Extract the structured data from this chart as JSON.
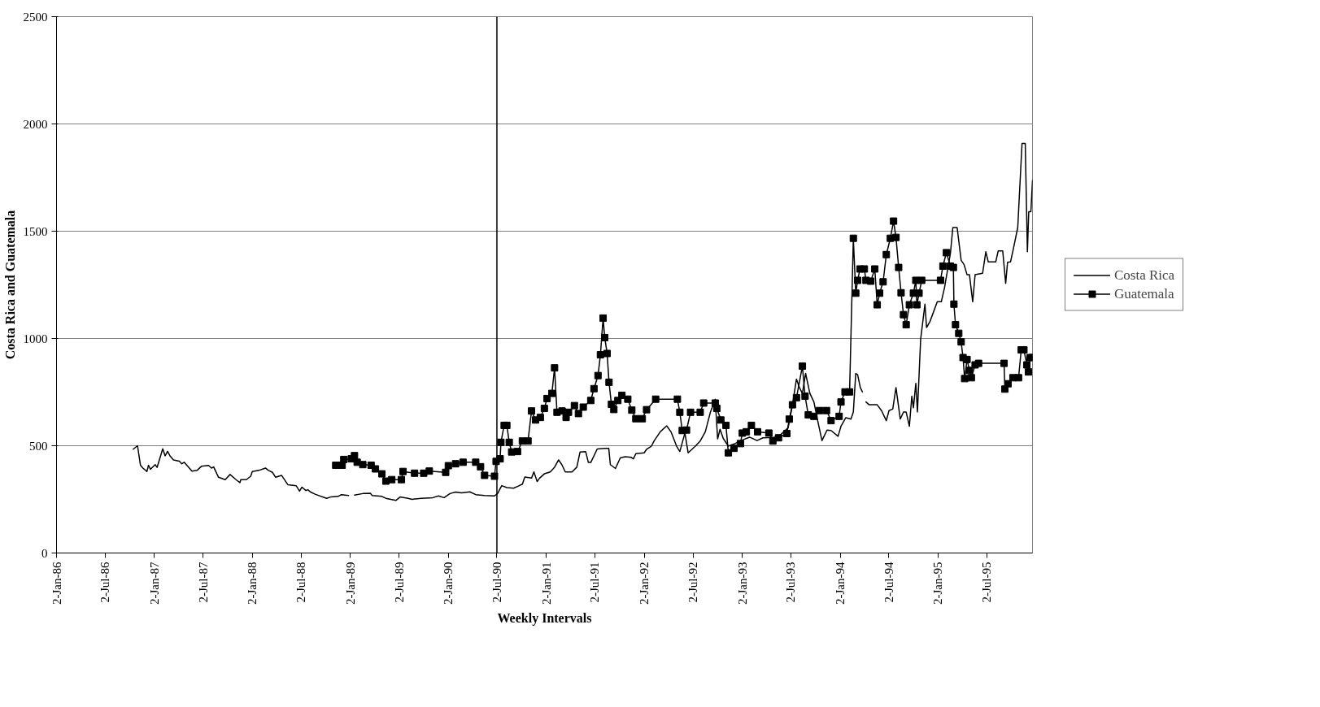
{
  "chart_data": {
    "type": "line",
    "xlabel": "Weekly Intervals",
    "ylabel": "Costa Rica and Guatemala",
    "xlim": [
      "1986-01-02",
      "1995-12-20"
    ],
    "ylim": [
      0,
      2500
    ],
    "yticks": [
      0,
      500,
      1000,
      1500,
      2000,
      2500
    ],
    "xticks": [
      {
        "value": "1986-01-02",
        "label": "2-Jan-86"
      },
      {
        "value": "1986-07-02",
        "label": "2-Jul-86"
      },
      {
        "value": "1987-01-02",
        "label": "2-Jan-87"
      },
      {
        "value": "1987-07-02",
        "label": "2-Jul-87"
      },
      {
        "value": "1988-01-02",
        "label": "2-Jan-88"
      },
      {
        "value": "1988-07-02",
        "label": "2-Jul-88"
      },
      {
        "value": "1989-01-02",
        "label": "2-Jan-89"
      },
      {
        "value": "1989-07-02",
        "label": "2-Jul-89"
      },
      {
        "value": "1990-01-02",
        "label": "2-Jan-90"
      },
      {
        "value": "1990-07-02",
        "label": "2-Jul-90"
      },
      {
        "value": "1991-01-02",
        "label": "2-Jan-91"
      },
      {
        "value": "1991-07-02",
        "label": "2-Jul-91"
      },
      {
        "value": "1992-01-02",
        "label": "2-Jan-92"
      },
      {
        "value": "1992-07-02",
        "label": "2-Jul-92"
      },
      {
        "value": "1993-01-02",
        "label": "2-Jan-93"
      },
      {
        "value": "1993-07-02",
        "label": "2-Jul-93"
      },
      {
        "value": "1994-01-02",
        "label": "2-Jan-94"
      },
      {
        "value": "1994-07-02",
        "label": "2-Jul-94"
      },
      {
        "value": "1995-01-02",
        "label": "2-Jan-95"
      },
      {
        "value": "1995-07-02",
        "label": "2-Jul-95"
      }
    ],
    "grid": "y",
    "legend": "right",
    "ref_lines": [
      {
        "axis": "x",
        "value": "1990-07-02",
        "color": "#000000"
      }
    ],
    "series": [
      {
        "name": "Costa Rica",
        "color": "#000000",
        "marker": "none",
        "x": [
          "1986-10-15",
          "1986-10-31",
          "1986-11-11",
          "1986-11-20",
          "1986-12-05",
          "1986-12-11",
          "1986-12-18",
          "1987-01-05",
          "1987-01-12",
          "1987-02-02",
          "1987-02-11",
          "1987-02-20",
          "1987-03-01",
          "1987-03-14",
          "1987-04-05",
          "1987-04-14",
          "1987-04-23",
          "1987-05-22",
          "1987-06-10",
          "1987-06-26",
          "1987-07-23",
          "1987-08-03",
          "1987-08-11",
          "1987-08-29",
          "1987-09-23",
          "1987-10-11",
          "1987-11-05",
          "1987-11-17",
          "1987-11-20",
          "1987-12-11",
          "1987-12-27",
          "1988-01-02",
          "1988-01-26",
          "1988-02-20",
          "1988-03-01",
          "1988-03-17",
          "1988-03-29",
          "1988-04-20",
          "1988-05-14",
          "1988-06-14",
          "1988-06-26",
          "1988-07-05",
          "1988-07-20",
          "1988-07-27",
          "1988-08-05",
          "1988-08-23",
          "1988-10-05",
          "1988-10-20",
          "1988-11-17",
          "1988-11-29",
          "1988-12-26",
          "1989-01-02",
          "1989-01-17",
          "1989-02-17",
          "1989-03-17",
          "1989-03-24",
          "1989-04-29",
          "1989-05-14",
          "1989-06-20",
          "1989-07-06",
          "1989-08-05",
          "1989-08-20",
          "1989-09-23",
          "1989-11-05",
          "1989-11-26",
          "1989-12-17",
          "1990-01-08",
          "1990-01-29",
          "1990-02-20",
          "1990-03-23",
          "1990-04-14",
          "1990-05-17",
          "1990-06-23",
          "1990-07-05",
          "1990-07-11",
          "1990-07-20",
          "1990-08-08",
          "1990-09-02",
          "1990-09-20",
          "1990-10-05",
          "1990-10-14",
          "1990-11-08",
          "1990-11-17",
          "1990-11-29",
          "1990-12-08",
          "1990-12-26",
          "1991-01-17",
          "1991-02-02",
          "1991-02-17",
          "1991-03-01",
          "1991-03-14",
          "1991-04-08",
          "1991-04-26",
          "1991-05-08",
          "1991-05-29",
          "1991-06-08",
          "1991-06-17",
          "1991-07-11",
          "1991-08-08",
          "1991-08-23",
          "1991-08-29",
          "1991-09-17",
          "1991-10-05",
          "1991-10-23",
          "1991-11-14",
          "1991-11-23",
          "1991-12-02",
          "1992-01-02",
          "1992-01-11",
          "1992-01-29",
          "1992-02-08",
          "1992-03-02",
          "1992-03-26",
          "1992-04-11",
          "1992-05-02",
          "1992-05-14",
          "1992-06-02",
          "1992-06-14",
          "1992-07-11",
          "1992-07-29",
          "1992-08-17",
          "1992-09-05",
          "1992-09-23",
          "1992-10-02",
          "1992-10-11",
          "1992-10-23",
          "1992-11-11",
          "1992-12-05",
          "1993-01-05",
          "1993-01-29",
          "1993-02-26",
          "1993-03-20",
          "1993-04-14",
          "1993-05-02",
          "1993-05-20",
          "1993-06-22",
          "1993-07-08",
          "1993-07-23",
          "1993-08-03",
          "1993-08-14",
          "1993-08-26",
          "1993-09-11",
          "1993-09-26",
          "1993-10-11",
          "1993-10-26",
          "1993-11-14",
          "1993-11-29",
          "1993-12-25",
          "1994-01-05",
          "1994-01-23",
          "1994-02-11",
          "1994-02-20",
          "1994-03-01",
          "1994-03-08",
          "1994-03-18",
          "1994-03-26",
          "1994-04-01",
          "1994-04-08",
          "1994-04-20",
          "1994-05-20",
          "1994-06-05",
          "1994-06-23",
          "1994-07-03",
          "1994-07-17",
          "1994-07-29",
          "1994-08-14",
          "1994-08-26",
          "1994-09-05",
          "1994-09-17",
          "1994-09-26",
          "1994-10-02",
          "1994-10-11",
          "1994-10-17",
          "1994-10-29",
          "1994-11-14",
          "1994-11-20",
          "1994-12-02",
          "1994-12-14",
          "1994-12-30",
          "1995-01-14",
          "1995-01-26",
          "1995-02-17",
          "1995-02-26",
          "1995-03-14",
          "1995-03-29",
          "1995-04-09",
          "1995-04-20",
          "1995-04-29",
          "1995-05-11",
          "1995-05-20",
          "1995-06-17",
          "1995-06-29",
          "1995-07-08",
          "1995-08-05",
          "1995-08-14",
          "1995-08-31",
          "1995-09-11",
          "1995-09-18",
          "1995-09-29",
          "1995-10-08",
          "1995-10-26",
          "1995-11-11",
          "1995-11-23",
          "1995-12-01",
          "1995-12-06",
          "1995-12-14",
          "1995-12-20"
        ],
        "values": [
          484,
          500,
          409,
          396,
          380,
          409,
          390,
          412,
          399,
          486,
          453,
          474,
          453,
          434,
          428,
          416,
          423,
          382,
          385,
          404,
          408,
          396,
          401,
          353,
          342,
          366,
          339,
          328,
          342,
          342,
          358,
          380,
          385,
          396,
          386,
          376,
          353,
          362,
          318,
          313,
          288,
          307,
          291,
          295,
          285,
          274,
          255,
          261,
          264,
          272,
          268,
          null,
          270,
          277,
          278,
          268,
          264,
          255,
          245,
          261,
          255,
          250,
          255,
          258,
          266,
          258,
          277,
          284,
          280,
          285,
          272,
          268,
          266,
          278,
          293,
          314,
          305,
          302,
          312,
          321,
          354,
          349,
          378,
          333,
          349,
          369,
          378,
          400,
          434,
          412,
          378,
          378,
          400,
          471,
          473,
          422,
          422,
          485,
          488,
          488,
          412,
          394,
          443,
          449,
          446,
          439,
          463,
          467,
          483,
          498,
          522,
          565,
          593,
          565,
          498,
          473,
          559,
          467,
          498,
          522,
          565,
          656,
          717,
          532,
          577,
          534,
          498,
          510,
          528,
          540,
          524,
          537,
          538,
          540,
          546,
          584,
          691,
          811,
          771,
          744,
          837,
          744,
          704,
          611,
          524,
          573,
          571,
          544,
          591,
          631,
          624,
          657,
          837,
          831,
          771,
          751,
          null,
          704,
          691,
          691,
          664,
          617,
          664,
          671,
          771,
          624,
          657,
          657,
          591,
          731,
          677,
          791,
          657,
          997,
          1160,
          1051,
          1077,
          1117,
          1171,
          1171,
          1237,
          1397,
          1517,
          1517,
          1364,
          1344,
          1297,
          1297,
          1171,
          1297,
          1304,
          1404,
          1357,
          1357,
          1408,
          1408,
          1257,
          1355,
          1357,
          1408,
          1517,
          1909,
          1909,
          1404,
          1591,
          1591,
          1737
        ]
      },
      {
        "name": "Guatemala",
        "color": "#000000",
        "marker": "square",
        "x": [
          "1988-11-08",
          "1988-12-02",
          "1988-12-08",
          "1989-01-05",
          "1989-01-17",
          "1989-01-27",
          "1989-02-17",
          "1989-03-20",
          "1989-04-05",
          "1989-04-29",
          "1989-05-14",
          "1989-06-05",
          "1989-07-11",
          "1989-07-17",
          "1989-08-29",
          "1989-10-02",
          "1989-10-23",
          "1989-12-23",
          "1990-01-02",
          "1990-01-29",
          "1990-02-26",
          "1990-04-14",
          "1990-05-02",
          "1990-05-17",
          "1990-06-23",
          "1990-06-29",
          "1990-07-14",
          "1990-07-17",
          "1990-07-29",
          "1990-08-08",
          "1990-08-17",
          "1990-08-26",
          "1990-09-17",
          "1990-10-05",
          "1990-10-26",
          "1990-11-08",
          "1990-11-23",
          "1990-12-11",
          "1990-12-26",
          "1991-01-05",
          "1991-01-23",
          "1991-02-02",
          "1991-02-11",
          "1991-03-02",
          "1991-03-17",
          "1991-03-26",
          "1991-04-17",
          "1991-05-02",
          "1991-05-20",
          "1991-06-17",
          "1991-06-29",
          "1991-07-14",
          "1991-07-23",
          "1991-08-02",
          "1991-08-08",
          "1991-08-17",
          "1991-08-24",
          "1991-09-02",
          "1991-09-11",
          "1991-09-26",
          "1991-10-11",
          "1991-11-02",
          "1991-11-17",
          "1991-12-02",
          "1991-12-26",
          "1992-01-11",
          "1992-02-14",
          "1992-05-05",
          "1992-05-14",
          "1992-05-23",
          "1992-06-08",
          "1992-06-23",
          "1992-07-29",
          "1992-08-11",
          "1992-09-23",
          "1992-09-29",
          "1992-10-14",
          "1992-11-02",
          "1992-11-11",
          "1992-12-02",
          "1992-12-26",
          "1993-01-02",
          "1993-01-17",
          "1993-02-05",
          "1993-02-28",
          "1993-04-11",
          "1993-04-26",
          "1993-05-17",
          "1993-06-17",
          "1993-06-26",
          "1993-07-08",
          "1993-07-23",
          "1993-08-14",
          "1993-08-24",
          "1993-09-05",
          "1993-09-26",
          "1993-10-17",
          "1993-11-12",
          "1993-11-29",
          "1993-12-29",
          "1994-01-05",
          "1994-01-20",
          "1994-02-06",
          "1994-02-20",
          "1994-03-01",
          "1994-03-08",
          "1994-03-17",
          "1994-04-02",
          "1994-04-08",
          "1994-04-26",
          "1994-05-11",
          "1994-05-20",
          "1994-05-29",
          "1994-06-11",
          "1994-06-23",
          "1994-07-08",
          "1994-07-20",
          "1994-07-29",
          "1994-08-08",
          "1994-08-17",
          "1994-08-26",
          "1994-09-05",
          "1994-09-17",
          "1994-10-02",
          "1994-10-11",
          "1994-10-15",
          "1994-10-23",
          "1994-11-02",
          "1995-01-11",
          "1995-01-20",
          "1995-02-02",
          "1995-02-17",
          "1995-02-28",
          "1995-03-02",
          "1995-03-08",
          "1995-03-20",
          "1995-03-29",
          "1995-04-05",
          "1995-04-11",
          "1995-04-20",
          "1995-04-29",
          "1995-05-06",
          "1995-05-20",
          "1995-06-02",
          "1995-09-05",
          "1995-09-08",
          "1995-09-20",
          "1995-10-08",
          "1995-10-29",
          "1995-11-08",
          "1995-11-18",
          "1995-11-29",
          "1995-12-05",
          "1995-12-11",
          "1995-12-20"
        ],
        "values": [
          409,
          409,
          436,
          439,
          454,
          423,
          412,
          409,
          392,
          369,
          335,
          342,
          342,
          380,
          372,
          372,
          382,
          376,
          407,
          416,
          423,
          423,
          402,
          362,
          358,
          427,
          439,
          516,
          595,
          595,
          516,
          471,
          473,
          522,
          522,
          662,
          620,
          632,
          674,
          720,
          744,
          863,
          656,
          662,
          632,
          656,
          687,
          650,
          680,
          711,
          766,
          827,
          924,
          1095,
          1004,
          930,
          796,
          693,
          669,
          711,
          735,
          717,
          666,
          626,
          626,
          668,
          717,
          717,
          656,
          571,
          573,
          656,
          656,
          699,
          699,
          674,
          620,
          595,
          467,
          488,
          510,
          559,
          565,
          595,
          565,
          559,
          522,
          537,
          557,
          624,
          691,
          724,
          871,
          731,
          644,
          637,
          664,
          664,
          617,
          637,
          704,
          751,
          751,
          1467,
          1211,
          1271,
          1324,
          1324,
          1271,
          1267,
          1324,
          1157,
          1211,
          1264,
          1391,
          1467,
          1547,
          1471,
          1331,
          1213,
          1111,
          1064,
          1157,
          1211,
          1271,
          1157,
          1211,
          1271,
          1271,
          1337,
          1400,
          1337,
          1331,
          1160,
          1064,
          1024,
          984,
          911,
          813,
          902,
          851,
          817,
          877,
          884,
          884,
          764,
          789,
          817,
          817,
          947,
          947,
          877,
          844,
          911,
          911
        ]
      }
    ]
  }
}
